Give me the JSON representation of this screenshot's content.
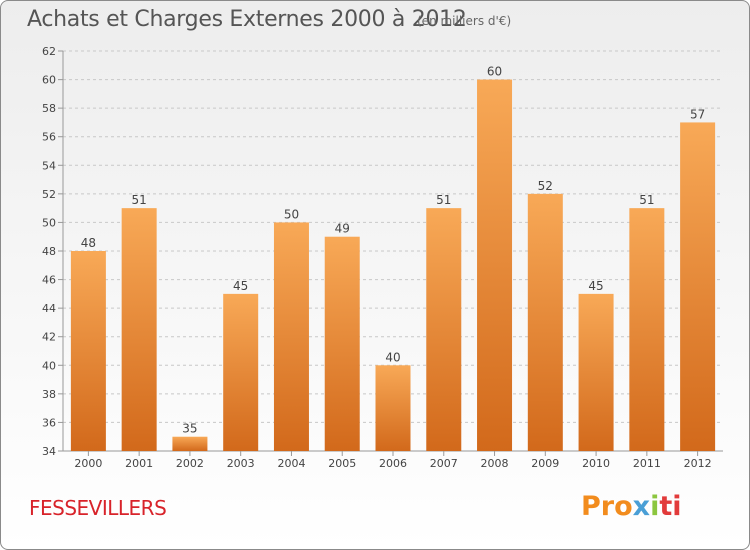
{
  "header": {
    "title": "Achats et Charges Externes 2000 à 2012",
    "subtitle": "(en milliers d'€)"
  },
  "footer": {
    "place": "FESSEVILLERS",
    "logo_parts": [
      "Pro",
      "x",
      "i",
      "ti"
    ]
  },
  "colors": {
    "bar_top": "#f8a957",
    "bar_bottom": "#d2691b",
    "grid": "#c8c8c8",
    "title": "#555555",
    "place": "#d8232a"
  },
  "chart_data": {
    "type": "bar",
    "title": "Achats et Charges Externes 2000 à 2012",
    "subtitle": "(en milliers d'€)",
    "xlabel": "",
    "ylabel": "",
    "categories": [
      "2000",
      "2001",
      "2002",
      "2003",
      "2004",
      "2005",
      "2006",
      "2007",
      "2008",
      "2009",
      "2010",
      "2011",
      "2012"
    ],
    "values": [
      48,
      51,
      35,
      45,
      50,
      49,
      40,
      51,
      60,
      52,
      45,
      51,
      57
    ],
    "ylim": [
      34,
      62
    ],
    "yticks": [
      34,
      36,
      38,
      40,
      42,
      44,
      46,
      48,
      50,
      52,
      54,
      56,
      58,
      60,
      62
    ],
    "grid": true,
    "legend": "none"
  }
}
